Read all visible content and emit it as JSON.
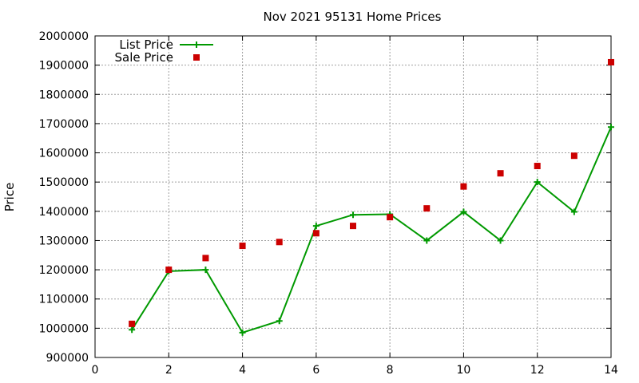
{
  "chart_data": {
    "type": "line",
    "title": "Nov 2021 95131 Home Prices",
    "xlabel": "",
    "ylabel": "Price",
    "xlim": [
      0,
      14
    ],
    "ylim": [
      900000,
      2000000
    ],
    "x_ticks": [
      0,
      2,
      4,
      6,
      8,
      10,
      12,
      14
    ],
    "y_ticks": [
      900000,
      1000000,
      1100000,
      1200000,
      1300000,
      1400000,
      1500000,
      1600000,
      1700000,
      1800000,
      1900000,
      2000000
    ],
    "grid": true,
    "legend_position": "top-left",
    "series": [
      {
        "name": "List Price",
        "style": "line-with-plus-markers",
        "color": "#009900",
        "x": [
          1,
          2,
          3,
          4,
          5,
          6,
          7,
          8,
          9,
          10,
          11,
          12,
          13,
          14
        ],
        "values": [
          995000,
          1195000,
          1200000,
          985000,
          1025000,
          1350000,
          1388000,
          1390000,
          1300000,
          1398000,
          1300000,
          1500000,
          1398000,
          1688000
        ]
      },
      {
        "name": "Sale Price",
        "style": "square-markers",
        "color": "#cc0000",
        "x": [
          1,
          2,
          3,
          4,
          5,
          6,
          7,
          8,
          9,
          10,
          11,
          12,
          13,
          14
        ],
        "values": [
          1015000,
          1200000,
          1240000,
          1282000,
          1295000,
          1325000,
          1350000,
          1380000,
          1410000,
          1485000,
          1530000,
          1555000,
          1590000,
          1910000
        ]
      }
    ]
  }
}
